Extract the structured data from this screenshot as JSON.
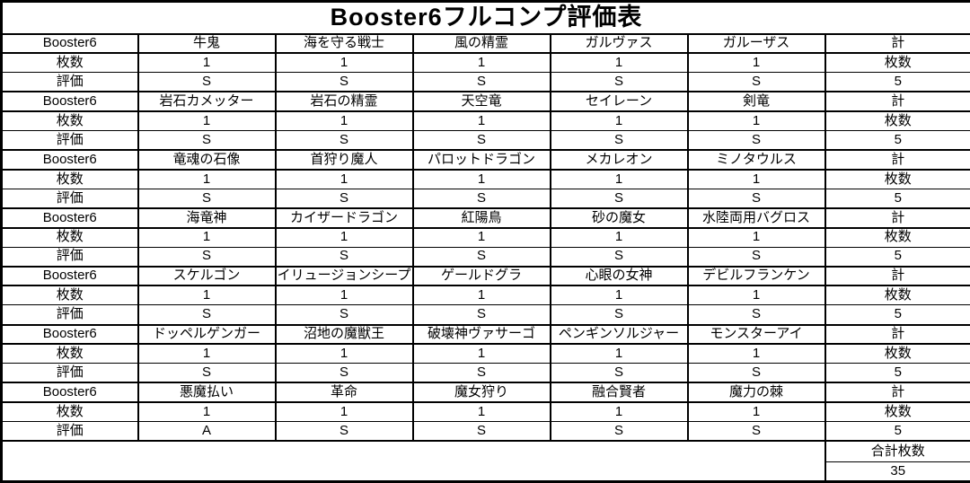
{
  "title": "Booster6フルコンプ評価表",
  "colors": {
    "border": "#000000",
    "background": "#ffffff",
    "text": "#000000"
  },
  "blocks": [
    {
      "set_label": "Booster6",
      "total_header": "計",
      "count_label": "枚数",
      "rating_label": "評価",
      "count_total_label": "枚数",
      "rating_total": "5",
      "cards": [
        "牛鬼",
        "海を守る戦士",
        "風の精霊",
        "ガルヴァス",
        "ガルーザス"
      ],
      "counts": [
        "1",
        "1",
        "1",
        "1",
        "1"
      ],
      "ratings": [
        "S",
        "S",
        "S",
        "S",
        "S"
      ]
    },
    {
      "set_label": "Booster6",
      "total_header": "計",
      "count_label": "枚数",
      "rating_label": "評価",
      "count_total_label": "枚数",
      "rating_total": "5",
      "cards": [
        "岩石カメッター",
        "岩石の精霊",
        "天空竜",
        "セイレーン",
        "剣竜"
      ],
      "counts": [
        "1",
        "1",
        "1",
        "1",
        "1"
      ],
      "ratings": [
        "S",
        "S",
        "S",
        "S",
        "S"
      ]
    },
    {
      "set_label": "Booster6",
      "total_header": "計",
      "count_label": "枚数",
      "rating_label": "評価",
      "count_total_label": "枚数",
      "rating_total": "5",
      "cards": [
        "竜魂の石像",
        "首狩り魔人",
        "パロットドラゴン",
        "メカレオン",
        "ミノタウルス"
      ],
      "counts": [
        "1",
        "1",
        "1",
        "1",
        "1"
      ],
      "ratings": [
        "S",
        "S",
        "S",
        "S",
        "S"
      ]
    },
    {
      "set_label": "Booster6",
      "total_header": "計",
      "count_label": "枚数",
      "rating_label": "評価",
      "count_total_label": "枚数",
      "rating_total": "5",
      "cards": [
        "海竜神",
        "カイザードラゴン",
        "紅陽鳥",
        "砂の魔女",
        "水陸両用バグロス"
      ],
      "counts": [
        "1",
        "1",
        "1",
        "1",
        "1"
      ],
      "ratings": [
        "S",
        "S",
        "S",
        "S",
        "S"
      ]
    },
    {
      "set_label": "Booster6",
      "total_header": "計",
      "count_label": "枚数",
      "rating_label": "評価",
      "count_total_label": "枚数",
      "rating_total": "5",
      "cards": [
        "スケルゴン",
        "イリュージョンシープ",
        "ゲールドグラ",
        "心眼の女神",
        "デビルフランケン"
      ],
      "counts": [
        "1",
        "1",
        "1",
        "1",
        "1"
      ],
      "ratings": [
        "S",
        "S",
        "S",
        "S",
        "S"
      ]
    },
    {
      "set_label": "Booster6",
      "total_header": "計",
      "count_label": "枚数",
      "rating_label": "評価",
      "count_total_label": "枚数",
      "rating_total": "5",
      "cards": [
        "ドッペルゲンガー",
        "沼地の魔獣王",
        "破壊神ヴァサーゴ",
        "ペンギンソルジャー",
        "モンスターアイ"
      ],
      "counts": [
        "1",
        "1",
        "1",
        "1",
        "1"
      ],
      "ratings": [
        "S",
        "S",
        "S",
        "S",
        "S"
      ]
    },
    {
      "set_label": "Booster6",
      "total_header": "計",
      "count_label": "枚数",
      "rating_label": "評価",
      "count_total_label": "枚数",
      "rating_total": "5",
      "cards": [
        "悪魔払い",
        "革命",
        "魔女狩り",
        "融合賢者",
        "魔力の棘"
      ],
      "counts": [
        "1",
        "1",
        "1",
        "1",
        "1"
      ],
      "ratings": [
        "A",
        "S",
        "S",
        "S",
        "S"
      ]
    }
  ],
  "footer": {
    "grand_total_label": "合計枚数",
    "grand_total_value": "35"
  }
}
